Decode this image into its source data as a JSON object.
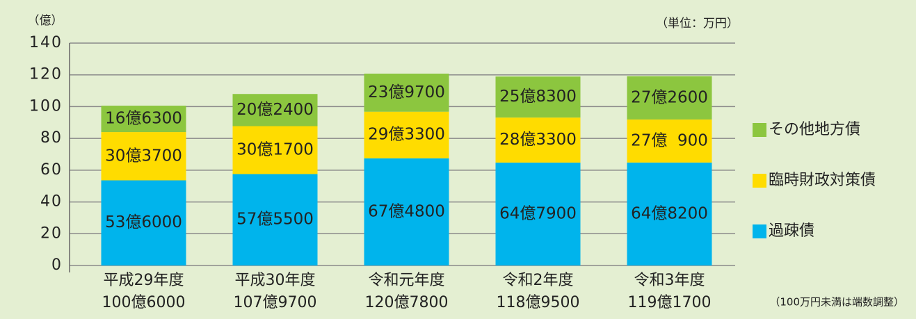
{
  "chart_data": {
    "type": "stacked_bar",
    "y_unit": "（億）",
    "unit_note": "（単位：万円）",
    "footnote": "（100万円未満は端数調整）",
    "categories": [
      "平成29年度",
      "平成30年度",
      "令和元年度",
      "令和2年度",
      "令和3年度"
    ],
    "category_totals": [
      "100億6000",
      "107億9700",
      "120億7800",
      "118億9500",
      "119億1700"
    ],
    "series": [
      {
        "name": "過疎債",
        "color": "#00b4ec",
        "values": [
          53.6,
          57.55,
          67.48,
          64.79,
          64.82
        ],
        "value_labels": [
          "53億6000",
          "57億5500",
          "67億4800",
          "64億7900",
          "64億8200"
        ]
      },
      {
        "name": "臨時財政対策債",
        "color": "#ffdc00",
        "values": [
          30.37,
          30.17,
          29.33,
          28.33,
          27.09
        ],
        "value_labels": [
          "30億3700",
          "30億1700",
          "29億3300",
          "28億3300",
          "27億  900"
        ]
      },
      {
        "name": "その他地方債",
        "color": "#8cc63f",
        "values": [
          16.63,
          20.24,
          23.97,
          25.83,
          27.26
        ],
        "value_labels": [
          "16億6300",
          "20億2400",
          "23億9700",
          "25億8300",
          "27億2600"
        ]
      }
    ],
    "ylim": [
      0,
      140
    ],
    "yticks": [
      0,
      20,
      40,
      60,
      80,
      100,
      120,
      140
    ],
    "grid": true,
    "legend": "right"
  }
}
